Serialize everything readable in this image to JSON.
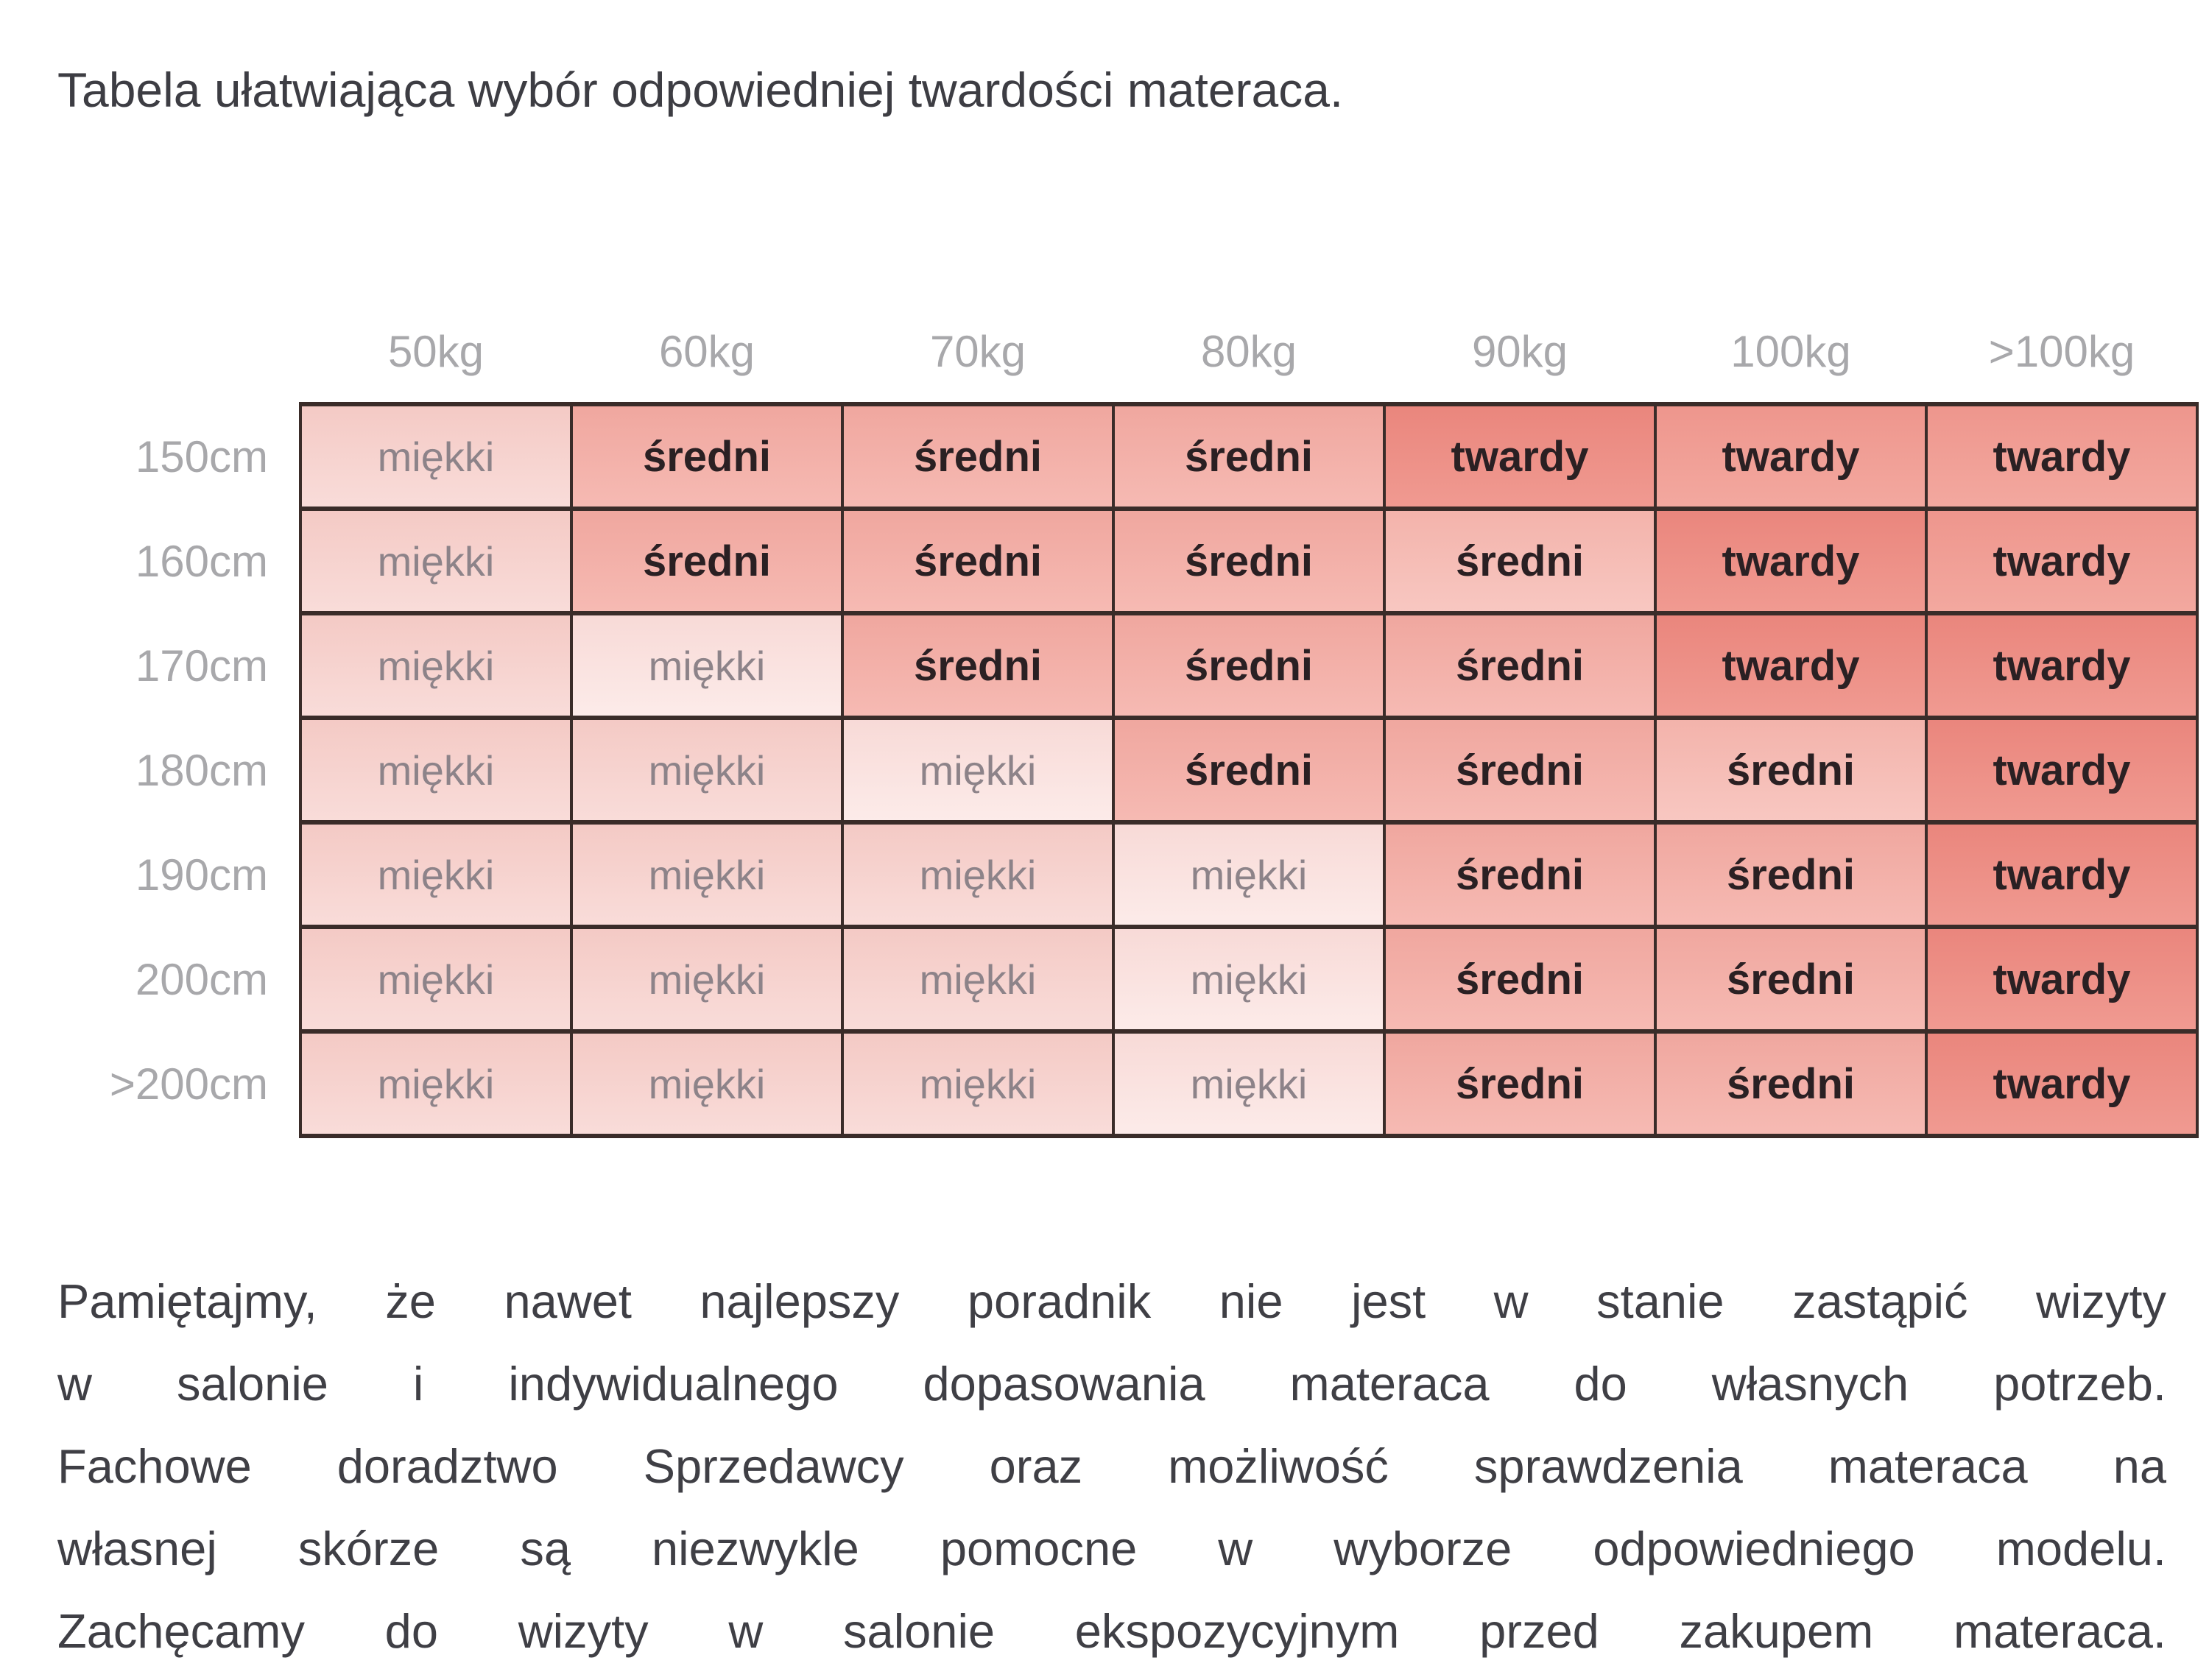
{
  "title": "Tabela ułatwiająca wybór odpowiedniej twardości materaca.",
  "table": {
    "weight_headers": [
      "50kg",
      "60kg",
      "70kg",
      "80kg",
      "90kg",
      "100kg",
      ">100kg"
    ],
    "rows": [
      {
        "height_label": "150cm",
        "cells": [
          {
            "label": "miękki",
            "level": "miekki",
            "shade": "base"
          },
          {
            "label": "średni",
            "level": "sredni",
            "shade": "base"
          },
          {
            "label": "średni",
            "level": "sredni",
            "shade": "base"
          },
          {
            "label": "średni",
            "level": "sredni",
            "shade": "base"
          },
          {
            "label": "twardy",
            "level": "twardy",
            "shade": "dark"
          },
          {
            "label": "twardy",
            "level": "twardy",
            "shade": "base"
          },
          {
            "label": "twardy",
            "level": "twardy",
            "shade": "base"
          }
        ]
      },
      {
        "height_label": "160cm",
        "cells": [
          {
            "label": "miękki",
            "level": "miekki",
            "shade": "base"
          },
          {
            "label": "średni",
            "level": "sredni",
            "shade": "base"
          },
          {
            "label": "średni",
            "level": "sredni",
            "shade": "base"
          },
          {
            "label": "średni",
            "level": "sredni",
            "shade": "base"
          },
          {
            "label": "średni",
            "level": "sredni",
            "shade": "light"
          },
          {
            "label": "twardy",
            "level": "twardy",
            "shade": "dark"
          },
          {
            "label": "twardy",
            "level": "twardy",
            "shade": "base"
          }
        ]
      },
      {
        "height_label": "170cm",
        "cells": [
          {
            "label": "miękki",
            "level": "miekki",
            "shade": "base"
          },
          {
            "label": "miękki",
            "level": "miekki",
            "shade": "pale"
          },
          {
            "label": "średni",
            "level": "sredni",
            "shade": "base"
          },
          {
            "label": "średni",
            "level": "sredni",
            "shade": "base"
          },
          {
            "label": "średni",
            "level": "sredni",
            "shade": "base"
          },
          {
            "label": "twardy",
            "level": "twardy",
            "shade": "dark"
          },
          {
            "label": "twardy",
            "level": "twardy",
            "shade": "dark"
          }
        ]
      },
      {
        "height_label": "180cm",
        "cells": [
          {
            "label": "miękki",
            "level": "miekki",
            "shade": "base"
          },
          {
            "label": "miękki",
            "level": "miekki",
            "shade": "base"
          },
          {
            "label": "miękki",
            "level": "miekki",
            "shade": "pale"
          },
          {
            "label": "średni",
            "level": "sredni",
            "shade": "base"
          },
          {
            "label": "średni",
            "level": "sredni",
            "shade": "base"
          },
          {
            "label": "średni",
            "level": "sredni",
            "shade": "light"
          },
          {
            "label": "twardy",
            "level": "twardy",
            "shade": "dark"
          }
        ]
      },
      {
        "height_label": "190cm",
        "cells": [
          {
            "label": "miękki",
            "level": "miekki",
            "shade": "base"
          },
          {
            "label": "miękki",
            "level": "miekki",
            "shade": "base"
          },
          {
            "label": "miękki",
            "level": "miekki",
            "shade": "base"
          },
          {
            "label": "miękki",
            "level": "miekki",
            "shade": "pale"
          },
          {
            "label": "średni",
            "level": "sredni",
            "shade": "base"
          },
          {
            "label": "średni",
            "level": "sredni",
            "shade": "base"
          },
          {
            "label": "twardy",
            "level": "twardy",
            "shade": "dark"
          }
        ]
      },
      {
        "height_label": "200cm",
        "cells": [
          {
            "label": "miękki",
            "level": "miekki",
            "shade": "base"
          },
          {
            "label": "miękki",
            "level": "miekki",
            "shade": "base"
          },
          {
            "label": "miękki",
            "level": "miekki",
            "shade": "base"
          },
          {
            "label": "miękki",
            "level": "miekki",
            "shade": "pale"
          },
          {
            "label": "średni",
            "level": "sredni",
            "shade": "base"
          },
          {
            "label": "średni",
            "level": "sredni",
            "shade": "base"
          },
          {
            "label": "twardy",
            "level": "twardy",
            "shade": "dark"
          }
        ]
      },
      {
        "height_label": ">200cm",
        "cells": [
          {
            "label": "miękki",
            "level": "miekki",
            "shade": "base"
          },
          {
            "label": "miękki",
            "level": "miekki",
            "shade": "base"
          },
          {
            "label": "miękki",
            "level": "miekki",
            "shade": "base"
          },
          {
            "label": "miękki",
            "level": "miekki",
            "shade": "pale"
          },
          {
            "label": "średni",
            "level": "sredni",
            "shade": "base"
          },
          {
            "label": "średni",
            "level": "sredni",
            "shade": "base"
          },
          {
            "label": "twardy",
            "level": "twardy",
            "shade": "dark"
          }
        ]
      }
    ]
  },
  "paragraph_lines": [
    "Pamiętajmy, że nawet najlepszy poradnik nie jest w stanie zastąpić wizyty",
    "w salonie i indywidualnego dopasowania materaca do własnych potrzeb.",
    "Fachowe doradztwo Sprzedawcy oraz możliwość sprawdzenia materaca na",
    "własnej skórze są niezwykle pomocne w wyborze odpowiedniego modelu.",
    "Zachęcamy do wizyty w salonie ekspozycyjnym przed zakupem materaca."
  ],
  "colors": {
    "border": "#3a2c29",
    "header_text": "#a8a8ab",
    "soft_text": "#8d8389",
    "bold_text": "#2a2023",
    "body_text": "#3f3f45",
    "cell_backgrounds": {
      "miekki-base": [
        "#f4cac5",
        "#f9dcd9"
      ],
      "miekki-pale": [
        "#f8dad7",
        "#fcebe9"
      ],
      "sredni-base": [
        "#f0a79f",
        "#f6bab3"
      ],
      "sredni-light": [
        "#f3b3ab",
        "#f8c7c1"
      ],
      "twardy-base": [
        "#ee968d",
        "#f3a89f"
      ],
      "twardy-dark": [
        "#ea867d",
        "#f09a91"
      ]
    }
  }
}
